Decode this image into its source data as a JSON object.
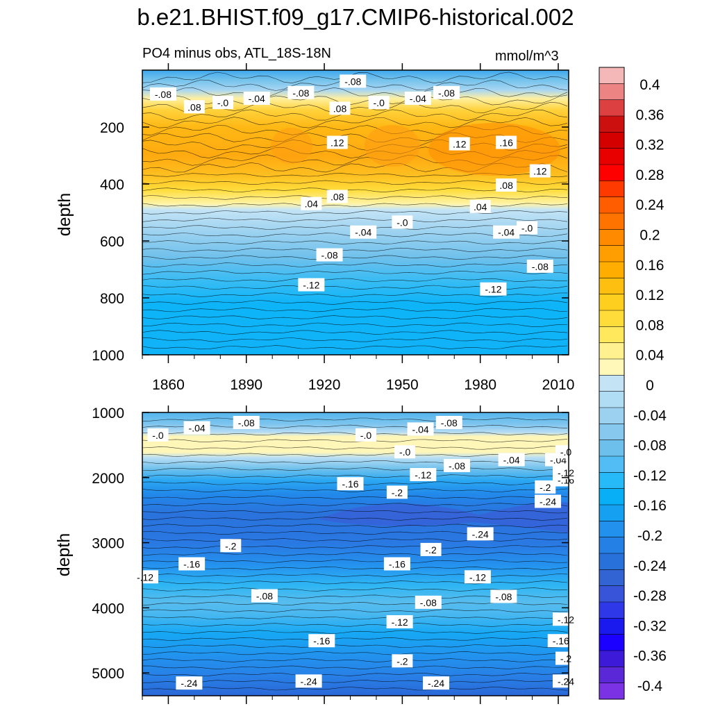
{
  "chart_data": [
    {
      "type": "heatmap",
      "title": "b.e21.BHIST.f09_g17.CMIP6-historical.002",
      "subtitle": "PO4 minus obs, ATL_18S-18N",
      "units": "mmol/m^3",
      "ylabel": "depth",
      "xlim": [
        1850,
        2014
      ],
      "ylim": [
        1000,
        0
      ],
      "x_ticks": [
        "1860",
        "1890",
        "1920",
        "1950",
        "1980",
        "2010"
      ],
      "y_ticks": [
        "200",
        "400",
        "600",
        "800",
        "1000"
      ],
      "contour_labels": [
        {
          "text": "-.08",
          "x": 1858,
          "y": 85
        },
        {
          "text": ".08",
          "x": 1870,
          "y": 130
        },
        {
          "text": "-.0",
          "x": 1881,
          "y": 115
        },
        {
          "text": "-.04",
          "x": 1894,
          "y": 100
        },
        {
          "text": "-.08",
          "x": 1911,
          "y": 80
        },
        {
          "text": "-.08",
          "x": 1931,
          "y": 40
        },
        {
          "text": ".08",
          "x": 1926,
          "y": 135
        },
        {
          "text": "-.0",
          "x": 1941,
          "y": 115
        },
        {
          "text": "-.04",
          "x": 1956,
          "y": 100
        },
        {
          "text": "-.08",
          "x": 1967,
          "y": 80
        },
        {
          "text": ".12",
          "x": 1925,
          "y": 255
        },
        {
          "text": ".12",
          "x": 1972,
          "y": 260
        },
        {
          "text": ".16",
          "x": 1990,
          "y": 255
        },
        {
          "text": ".12",
          "x": 2003,
          "y": 355
        },
        {
          "text": ".08",
          "x": 1925,
          "y": 445
        },
        {
          "text": ".08",
          "x": 1990,
          "y": 405
        },
        {
          "text": ".04",
          "x": 1915,
          "y": 470
        },
        {
          "text": ".04",
          "x": 1980,
          "y": 480
        },
        {
          "text": "-.0",
          "x": 1950,
          "y": 535
        },
        {
          "text": "-.0",
          "x": 1998,
          "y": 555
        },
        {
          "text": "-.04",
          "x": 1935,
          "y": 570
        },
        {
          "text": "-.04",
          "x": 1990,
          "y": 570
        },
        {
          "text": "-.08",
          "x": 1922,
          "y": 650
        },
        {
          "text": "-.08",
          "x": 2003,
          "y": 690
        },
        {
          "text": "-.12",
          "x": 1915,
          "y": 755
        },
        {
          "text": "-.12",
          "x": 1985,
          "y": 770
        }
      ]
    },
    {
      "type": "heatmap",
      "ylabel": "depth",
      "xlim": [
        1850,
        2014
      ],
      "ylim": [
        5350,
        1000
      ],
      "y_ticks": [
        "1000",
        "2000",
        "3000",
        "4000",
        "5000"
      ],
      "contour_labels": [
        {
          "text": "-.0",
          "x": 1856,
          "y": 1350
        },
        {
          "text": "-.04",
          "x": 1871,
          "y": 1240
        },
        {
          "text": "-.08",
          "x": 1890,
          "y": 1160
        },
        {
          "text": "-.0",
          "x": 1936,
          "y": 1350
        },
        {
          "text": "-.04",
          "x": 1957,
          "y": 1260
        },
        {
          "text": "-.08",
          "x": 1968,
          "y": 1160
        },
        {
          "text": "-.0",
          "x": 1951,
          "y": 1610
        },
        {
          "text": "-.08",
          "x": 1971,
          "y": 1820
        },
        {
          "text": "-.04",
          "x": 1992,
          "y": 1730
        },
        {
          "text": "-.04",
          "x": 2010,
          "y": 1730
        },
        {
          "text": "-.0",
          "x": 2026,
          "y": 1610
        },
        {
          "text": "-.12",
          "x": 1958,
          "y": 1960
        },
        {
          "text": "-.16",
          "x": 1930,
          "y": 2100
        },
        {
          "text": "-.2",
          "x": 1948,
          "y": 2230
        },
        {
          "text": "-.2",
          "x": 2005,
          "y": 2150
        },
        {
          "text": "-.16",
          "x": 2041,
          "y": 2040
        },
        {
          "text": "-.12",
          "x": 2074,
          "y": 1930
        },
        {
          "text": "-.24",
          "x": 2006,
          "y": 2370
        },
        {
          "text": "-.24",
          "x": 1980,
          "y": 2870
        },
        {
          "text": "-.2",
          "x": 1884,
          "y": 3050
        },
        {
          "text": "-.2",
          "x": 1961,
          "y": 3110
        },
        {
          "text": "-.16",
          "x": 1869,
          "y": 3330
        },
        {
          "text": "-.16",
          "x": 1948,
          "y": 3330
        },
        {
          "text": "-.12",
          "x": 1848,
          "y": 3530
        },
        {
          "text": "-.12",
          "x": 1979,
          "y": 3530
        },
        {
          "text": "-.08",
          "x": 1897,
          "y": 3820
        },
        {
          "text": "-.08",
          "x": 1960,
          "y": 3920
        },
        {
          "text": "-.08",
          "x": 1989,
          "y": 3830
        },
        {
          "text": "-.12",
          "x": 1949,
          "y": 4220
        },
        {
          "text": "-.12",
          "x": 2022,
          "y": 4180
        },
        {
          "text": "-.16",
          "x": 1919,
          "y": 4510
        },
        {
          "text": "-.16",
          "x": 2011,
          "y": 4510
        },
        {
          "text": "-.2",
          "x": 1950,
          "y": 4820
        },
        {
          "text": "-.2",
          "x": 2036,
          "y": 4780
        },
        {
          "text": "-.24",
          "x": 1868,
          "y": 5160
        },
        {
          "text": "-.24",
          "x": 1914,
          "y": 5130
        },
        {
          "text": "-.24",
          "x": 1963,
          "y": 5160
        },
        {
          "text": "-.24",
          "x": 2031,
          "y": 5130
        }
      ]
    }
  ],
  "colorbar": {
    "labels": [
      "0.4",
      "0.36",
      "0.32",
      "0.28",
      "0.24",
      "0.2",
      "0.16",
      "0.12",
      "0.08",
      "0.04",
      "0",
      "-0.04",
      "-0.08",
      "-0.12",
      "-0.16",
      "-0.2",
      "-0.24",
      "-0.28",
      "-0.32",
      "-0.36",
      "-0.4"
    ],
    "colors": [
      "#f4b8b8",
      "#ec8484",
      "#dd4040",
      "#cc1010",
      "#d40000",
      "#e80000",
      "#ff0000",
      "#ff3a00",
      "#ff5d00",
      "#ff7400",
      "#ff8a00",
      "#ff9e00",
      "#ffae00",
      "#ffbf10",
      "#ffcf20",
      "#ffdc3a",
      "#ffe85c",
      "#fff090",
      "#fff8b8",
      "#c4e4f6",
      "#b0dcf4",
      "#9cd2f0",
      "#86c8ee",
      "#6ec0ec",
      "#52bcf4",
      "#26baf8",
      "#08aef6",
      "#16a0f2",
      "#2291ee",
      "#2580e6",
      "#2870da",
      "#3264d4",
      "#3854d8",
      "#2e38e8",
      "#1a1aee",
      "#1c00ff",
      "#3c1ad8",
      "#5a28d6",
      "#7a32e4"
    ]
  }
}
